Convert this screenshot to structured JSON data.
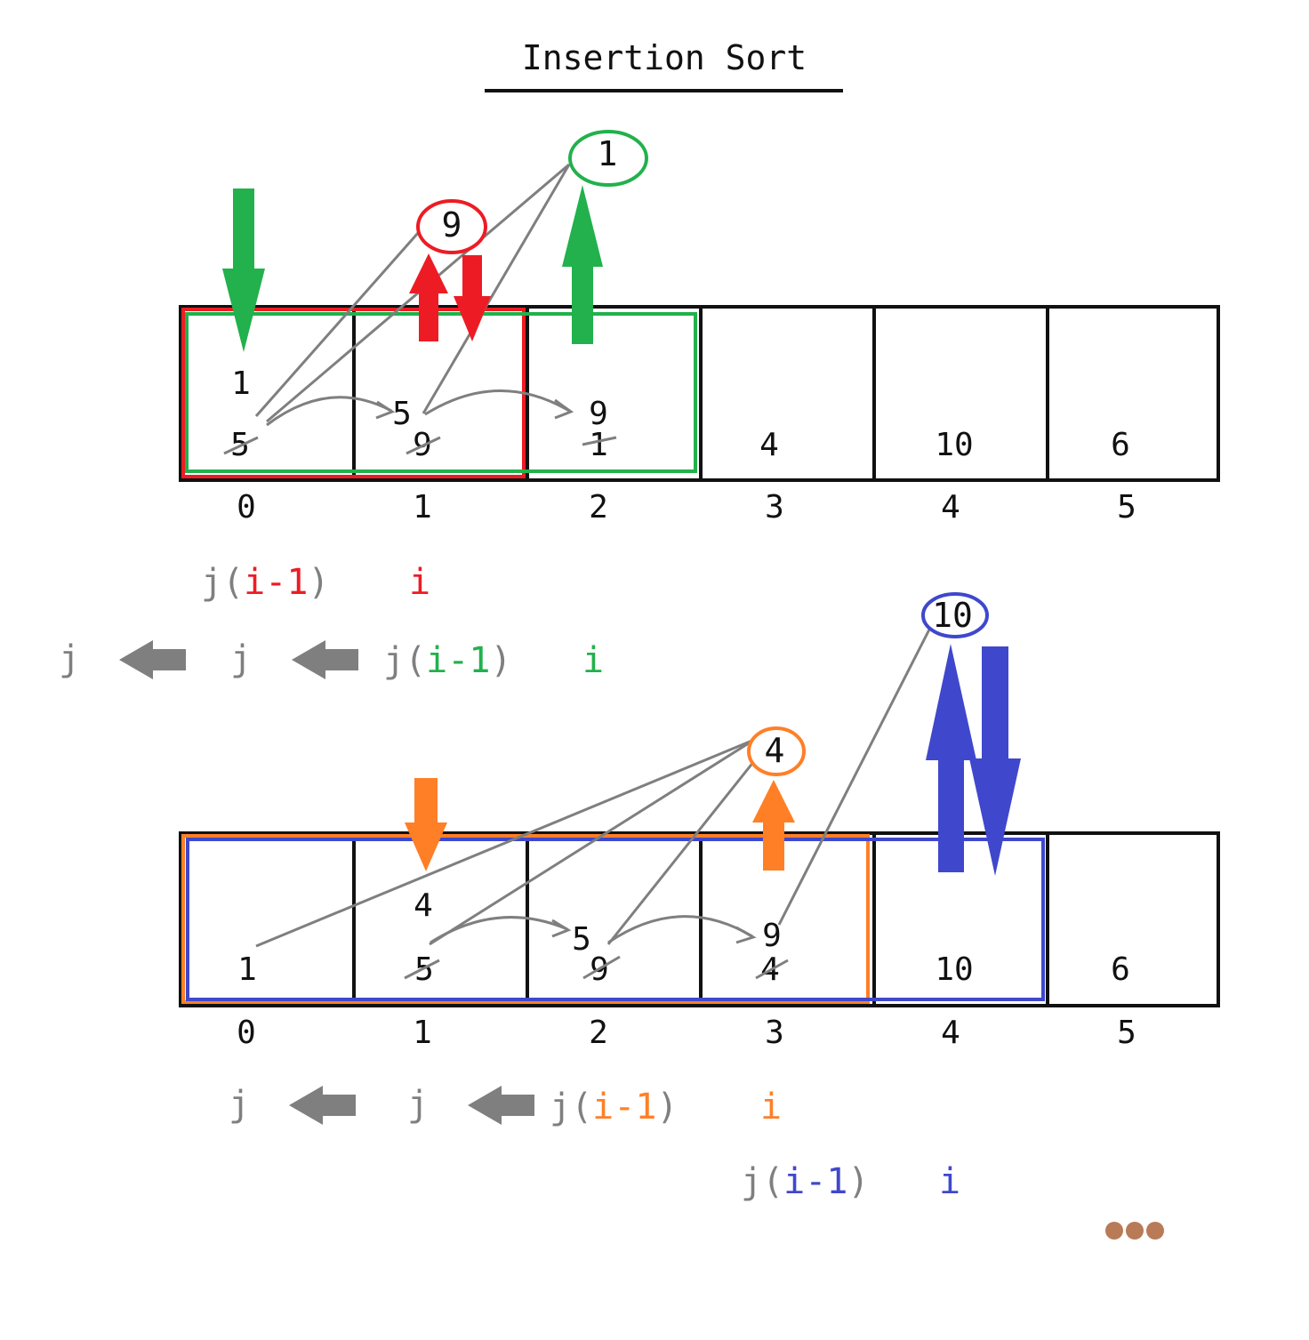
{
  "title": "Insertion Sort",
  "colors": {
    "black": "#111111",
    "gray": "#7f7f7f",
    "red": "#ed1c24",
    "green": "#22b14c",
    "orange": "#ff7f27",
    "blue": "#3f48cc",
    "brown": "#b97a57"
  },
  "indices": [
    "0",
    "1",
    "2",
    "3",
    "4",
    "5"
  ],
  "array1": {
    "cells": [
      "5",
      "9",
      "1",
      "4",
      "10",
      "6"
    ],
    "struck": [
      "5",
      "9",
      "1"
    ],
    "stacked": {
      "c0_top": "1",
      "c1_mid": "5",
      "c2_mid": "9"
    },
    "bubble_red": "9",
    "bubble_green": "1"
  },
  "array2": {
    "cells": [
      "1",
      "5",
      "9",
      "4",
      "10",
      "6"
    ],
    "struck": [
      "5",
      "9",
      "4"
    ],
    "stacked": {
      "c1_top": "4",
      "c2_mid": "5",
      "c3_mid": "9"
    },
    "bubble_orange": "4",
    "bubble_blue": "10"
  },
  "pointers": {
    "j": "j",
    "j_paren_open": "j(",
    "i_minus_1": "i-1",
    "paren_close": ")",
    "i": "i"
  },
  "continuation_icon": "ellipsis-dots-icon"
}
